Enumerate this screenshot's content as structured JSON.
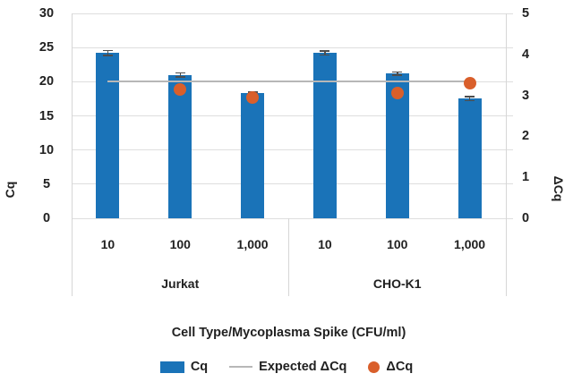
{
  "chart_data": {
    "type": "bar",
    "title": "",
    "xlabel": "Cell Type/Mycoplasma Spike (CFU/ml)",
    "ylabel_left": "Cq",
    "ylabel_right": "ΔCq",
    "left_axis": {
      "min": 0,
      "max": 30,
      "ticks": [
        0,
        5,
        10,
        15,
        20,
        25,
        30
      ]
    },
    "right_axis": {
      "min": 0,
      "max": 5,
      "ticks": [
        0,
        1,
        2,
        3,
        4,
        5
      ]
    },
    "grid": true,
    "legend_position": "bottom",
    "groups": [
      {
        "label": "Jurkat",
        "categories": [
          "10",
          "100",
          "1,000"
        ]
      },
      {
        "label": "CHO-K1",
        "categories": [
          "10",
          "100",
          "1,000"
        ]
      }
    ],
    "series": [
      {
        "name": "Cq",
        "type": "bar",
        "axis": "left",
        "color": "#1A73B8",
        "values": [
          24.2,
          21.0,
          18.3,
          24.2,
          21.2,
          17.5
        ],
        "errors": [
          0.35,
          0.3,
          0.2,
          0.3,
          0.25,
          0.3
        ]
      },
      {
        "name": "Expected ΔCq",
        "type": "line",
        "axis": "right",
        "color": "#B7B7B7",
        "value": 3.33
      },
      {
        "name": "ΔCq",
        "type": "point",
        "axis": "right",
        "color": "#D95F2B",
        "values": [
          null,
          3.15,
          2.95,
          null,
          3.05,
          3.3
        ]
      }
    ],
    "error_bar_color": "#4D4D4D"
  }
}
